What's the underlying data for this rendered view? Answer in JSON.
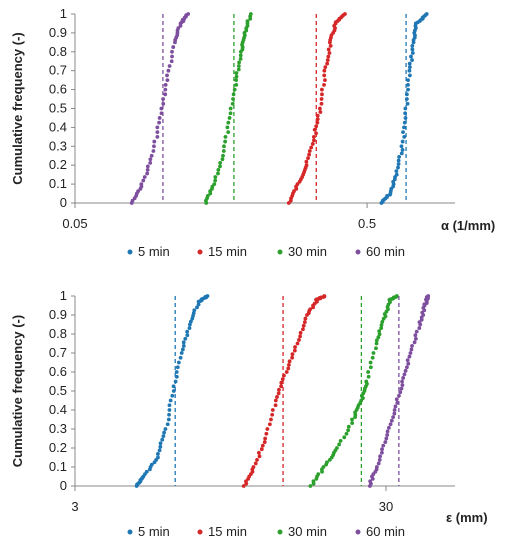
{
  "chart_data": [
    {
      "type": "scatter",
      "x_scale": "log",
      "xlabel": "α  (1/mm)",
      "ylabel": "Cumulative frequency (-)",
      "xlim": [
        0.05,
        1.0
      ],
      "ylim": [
        0,
        1
      ],
      "x_tick_labels": [
        {
          "value": 0.05,
          "label": "0.05"
        },
        {
          "value": 0.5,
          "label": "0.5"
        }
      ],
      "y_tick_labels": [
        "0",
        "0.1",
        "0.2",
        "0.3",
        "0.4",
        "0.5",
        "0.6",
        "0.7",
        "0.8",
        "0.9",
        "1"
      ],
      "grid": false,
      "legend_position": "bottom",
      "series": [
        {
          "name": "5 min",
          "color": "#1f77b4",
          "mean_line": 0.68,
          "cdf": [
            [
              0.56,
              0.0
            ],
            [
              0.6,
              0.05
            ],
            [
              0.63,
              0.15
            ],
            [
              0.66,
              0.3
            ],
            [
              0.68,
              0.5
            ],
            [
              0.7,
              0.7
            ],
            [
              0.72,
              0.85
            ],
            [
              0.74,
              0.95
            ],
            [
              0.8,
              1.0
            ]
          ]
        },
        {
          "name": "15 min",
          "color": "#d62728",
          "mean_line": 0.335,
          "cdf": [
            [
              0.27,
              0.0
            ],
            [
              0.29,
              0.1
            ],
            [
              0.31,
              0.2
            ],
            [
              0.33,
              0.35
            ],
            [
              0.345,
              0.5
            ],
            [
              0.36,
              0.7
            ],
            [
              0.375,
              0.85
            ],
            [
              0.39,
              0.95
            ],
            [
              0.42,
              1.0
            ]
          ]
        },
        {
          "name": "30 min",
          "color": "#2ca02c",
          "mean_line": 0.175,
          "cdf": [
            [
              0.14,
              0.0
            ],
            [
              0.15,
              0.1
            ],
            [
              0.16,
              0.25
            ],
            [
              0.17,
              0.45
            ],
            [
              0.178,
              0.65
            ],
            [
              0.185,
              0.8
            ],
            [
              0.19,
              0.9
            ],
            [
              0.2,
              1.0
            ]
          ]
        },
        {
          "name": "60 min",
          "color": "#7f4f9f",
          "mean_line": 0.1,
          "cdf": [
            [
              0.078,
              0.0
            ],
            [
              0.085,
              0.1
            ],
            [
              0.092,
              0.25
            ],
            [
              0.098,
              0.45
            ],
            [
              0.103,
              0.65
            ],
            [
              0.11,
              0.85
            ],
            [
              0.115,
              0.95
            ],
            [
              0.122,
              1.0
            ]
          ]
        }
      ]
    },
    {
      "type": "scatter",
      "x_scale": "log",
      "xlabel": "ε  (mm)",
      "ylabel": "Cumulative frequency (-)",
      "xlim": [
        3,
        50
      ],
      "ylim": [
        0,
        1
      ],
      "x_tick_labels": [
        {
          "value": 3,
          "label": "3"
        },
        {
          "value": 30,
          "label": "30"
        }
      ],
      "y_tick_labels": [
        "0",
        "0.1",
        "0.2",
        "0.3",
        "0.4",
        "0.5",
        "0.6",
        "0.7",
        "0.8",
        "0.9",
        "1"
      ],
      "grid": false,
      "legend_position": "bottom",
      "series": [
        {
          "name": "5 min",
          "color": "#1f77b4",
          "mean_line": 6.3,
          "cdf": [
            [
              4.7,
              0.0
            ],
            [
              5.0,
              0.05
            ],
            [
              5.5,
              0.15
            ],
            [
              5.9,
              0.3
            ],
            [
              6.2,
              0.5
            ],
            [
              6.6,
              0.7
            ],
            [
              7.0,
              0.85
            ],
            [
              7.5,
              0.97
            ],
            [
              8.0,
              1.0
            ]
          ]
        },
        {
          "name": "15 min",
          "color": "#d62728",
          "mean_line": 14.0,
          "cdf": [
            [
              10.5,
              0.0
            ],
            [
              11.3,
              0.1
            ],
            [
              12.3,
              0.25
            ],
            [
              13.3,
              0.45
            ],
            [
              14.3,
              0.6
            ],
            [
              15.5,
              0.75
            ],
            [
              16.8,
              0.9
            ],
            [
              18.0,
              0.98
            ],
            [
              19.0,
              1.0
            ]
          ]
        },
        {
          "name": "30 min",
          "color": "#2ca02c",
          "mean_line": 25.0,
          "cdf": [
            [
              17.2,
              0.0
            ],
            [
              19.0,
              0.1
            ],
            [
              21.0,
              0.2
            ],
            [
              23.5,
              0.35
            ],
            [
              25.0,
              0.45
            ],
            [
              26.0,
              0.55
            ],
            [
              28.0,
              0.75
            ],
            [
              29.5,
              0.88
            ],
            [
              31.0,
              0.98
            ],
            [
              32.5,
              1.0
            ]
          ]
        },
        {
          "name": "60 min",
          "color": "#7f4f9f",
          "mean_line": 33.0,
          "cdf": [
            [
              26.5,
              0.0
            ],
            [
              28.0,
              0.1
            ],
            [
              30.0,
              0.25
            ],
            [
              32.0,
              0.4
            ],
            [
              34.0,
              0.55
            ],
            [
              36.0,
              0.7
            ],
            [
              38.5,
              0.85
            ],
            [
              40.0,
              0.95
            ],
            [
              41.0,
              1.0
            ]
          ]
        }
      ]
    }
  ]
}
